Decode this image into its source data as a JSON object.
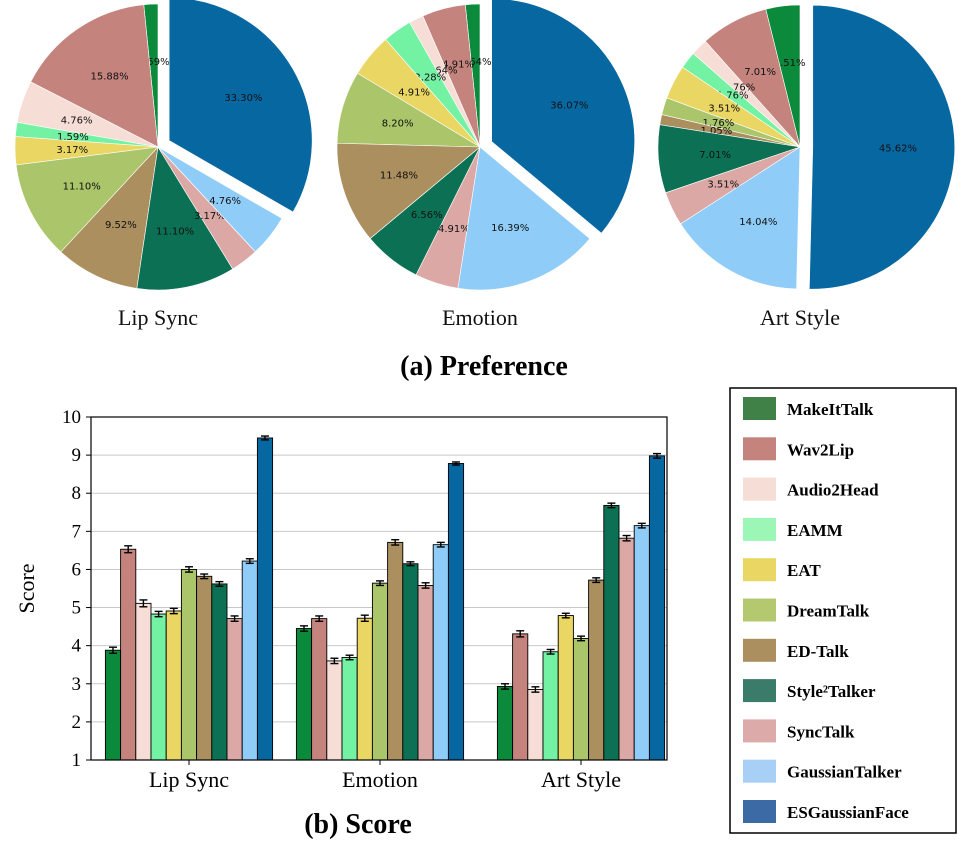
{
  "colors": [
    "#0b8a3c",
    "#c5837e",
    "#f6ddd6",
    "#74f2a4",
    "#e9d663",
    "#aac56a",
    "#ab8f5f",
    "#0c7154",
    "#dca8a5",
    "#8fcdf8",
    "#0767a1"
  ],
  "legend_colors": [
    "#3f8146",
    "#c5837e",
    "#f6ddd6",
    "#9cf6b6",
    "#e9d663",
    "#b4c870",
    "#ab8f5f",
    "#3b7b6a",
    "#dcaaa8",
    "#a8d0f7",
    "#3c6aa5"
  ],
  "chart_data": [
    {
      "type": "pie",
      "title": "Lip Sync",
      "labels": [
        "MakeItTalk",
        "Wav2Lip",
        "Audio2Head",
        "EAMM",
        "EAT",
        "DreamTalk",
        "ED-Talk",
        "Style2Talker",
        "SyncTalk",
        "GaussianTalker",
        "ESGaussianFace"
      ],
      "values": [
        1.59,
        15.88,
        4.76,
        1.59,
        3.17,
        11.1,
        9.52,
        11.1,
        3.17,
        4.76,
        33.3
      ],
      "value_labels": [
        "1.59%",
        "15.88%",
        "4.76%",
        "1.59%",
        "3.17%",
        "11.10%",
        "9.52%",
        "11.10%",
        "3.17%",
        "4.76%",
        "33.30%"
      ],
      "exploded": "ESGaussianFace"
    },
    {
      "type": "pie",
      "title": "Emotion",
      "labels": [
        "MakeItTalk",
        "Wav2Lip",
        "Audio2Head",
        "EAMM",
        "EAT",
        "DreamTalk",
        "ED-Talk",
        "Style2Talker",
        "SyncTalk",
        "GaussianTalker",
        "ESGaussianFace"
      ],
      "values": [
        1.64,
        4.91,
        1.64,
        3.28,
        4.91,
        8.2,
        11.48,
        6.56,
        4.91,
        16.39,
        36.07
      ],
      "value_labels": [
        "1.64%",
        "4.91%",
        "1.64%",
        "3.28%",
        "4.91%",
        "8.20%",
        "11.48%",
        "6.56%",
        "4.91%",
        "16.39%",
        "36.07%"
      ],
      "exploded": "ESGaussianFace"
    },
    {
      "type": "pie",
      "title": "Art Style",
      "labels": [
        "MakeItTalk",
        "Wav2Lip",
        "Audio2Head",
        "EAMM",
        "EAT",
        "DreamTalk",
        "ED-Talk",
        "Style2Talker",
        "SyncTalk",
        "GaussianTalker",
        "ESGaussianFace"
      ],
      "values": [
        3.51,
        7.01,
        1.76,
        1.76,
        3.51,
        1.76,
        1.05,
        7.01,
        3.51,
        14.04,
        45.62
      ],
      "value_labels": [
        "3.51%",
        "7.01%",
        "1.76%",
        "1.76%",
        "3.51%",
        "1.76%",
        "1.05%",
        "7.01%",
        "3.51%",
        "14.04%",
        "45.62%"
      ],
      "exploded": "ESGaussianFace"
    },
    {
      "type": "bar",
      "categories": [
        "Lip Sync",
        "Emotion",
        "Art Style"
      ],
      "ylabel": "Score",
      "ylim": [
        1,
        10
      ],
      "yticks": [
        "1",
        "2",
        "3",
        "4",
        "5",
        "6",
        "7",
        "8",
        "9",
        "10"
      ],
      "grid": true,
      "series": [
        {
          "name": "MakeItTalk",
          "values": [
            3.88,
            4.45,
            2.93
          ],
          "errors": [
            0.08,
            0.07,
            0.07
          ]
        },
        {
          "name": "Wav2Lip",
          "values": [
            6.53,
            4.71,
            4.31
          ],
          "errors": [
            0.09,
            0.07,
            0.08
          ]
        },
        {
          "name": "Audio2Head",
          "values": [
            5.11,
            3.6,
            2.85
          ],
          "errors": [
            0.09,
            0.07,
            0.07
          ]
        },
        {
          "name": "EAMM",
          "values": [
            4.83,
            3.69,
            3.84
          ],
          "errors": [
            0.07,
            0.06,
            0.06
          ]
        },
        {
          "name": "EAT",
          "values": [
            4.91,
            4.72,
            4.79
          ],
          "errors": [
            0.07,
            0.08,
            0.06
          ]
        },
        {
          "name": "DreamTalk",
          "values": [
            6.0,
            5.64,
            4.19
          ],
          "errors": [
            0.07,
            0.06,
            0.06
          ]
        },
        {
          "name": "ED-Talk",
          "values": [
            5.82,
            6.71,
            5.72
          ],
          "errors": [
            0.06,
            0.07,
            0.06
          ]
        },
        {
          "name": "Style2Talker",
          "values": [
            5.62,
            6.15,
            7.68
          ],
          "errors": [
            0.06,
            0.05,
            0.06
          ]
        },
        {
          "name": "SyncTalk",
          "values": [
            4.71,
            5.58,
            6.82
          ],
          "errors": [
            0.07,
            0.07,
            0.07
          ]
        },
        {
          "name": "GaussianTalker",
          "values": [
            6.22,
            6.65,
            7.15
          ],
          "errors": [
            0.06,
            0.06,
            0.06
          ]
        },
        {
          "name": "ESGaussianFace",
          "values": [
            9.45,
            8.78,
            8.98
          ],
          "errors": [
            0.05,
            0.04,
            0.06
          ]
        }
      ]
    }
  ],
  "captions": {
    "preference": "(a) Preference",
    "score": "(b) Score"
  },
  "legend": {
    "labels": [
      "MakeItTalk",
      "Wav2Lip",
      "Audio2Head",
      "EAMM",
      "EAT",
      "DreamTalk",
      "ED-Talk",
      "Style²Talker",
      "SyncTalk",
      "GaussianTalker",
      "ESGaussianFace"
    ]
  }
}
